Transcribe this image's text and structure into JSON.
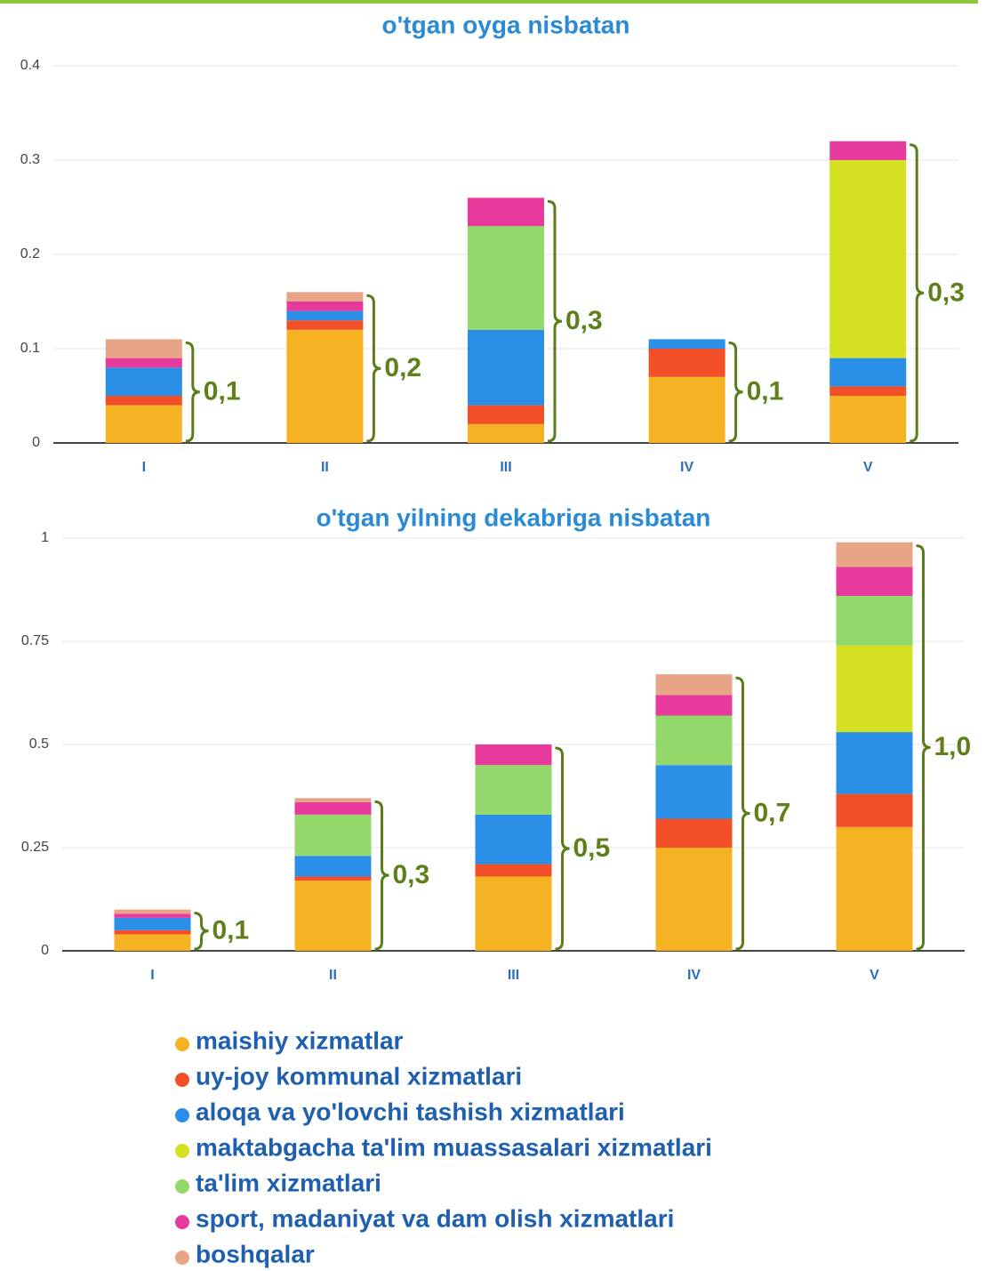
{
  "chart_data": [
    {
      "type": "stacked_bar",
      "title": "o'tgan oyga nisbatan",
      "categories": [
        "I",
        "II",
        "III",
        "IV",
        "V"
      ],
      "ylim": [
        0,
        0.4
      ],
      "yticks": [
        0,
        0.1,
        0.2,
        0.3,
        0.4
      ],
      "grid": true,
      "series": [
        {
          "name": "maishiy xizmatlar",
          "color": "#f5b324",
          "values": [
            0.04,
            0.12,
            0.02,
            0.07,
            0.05
          ]
        },
        {
          "name": "uy-joy kommunal xizmatlari",
          "color": "#f24e28",
          "values": [
            0.01,
            0.01,
            0.02,
            0.03,
            0.01
          ]
        },
        {
          "name": "aloqa va yo'lovchi tashish xizmatlari",
          "color": "#2b8fe8",
          "values": [
            0.03,
            0.01,
            0.08,
            0.01,
            0.03
          ]
        },
        {
          "name": "maktabgacha ta'lim muassasalari xizmatlari",
          "color": "#d4e021",
          "values": [
            null,
            null,
            null,
            null,
            0.21
          ]
        },
        {
          "name": "ta'lim xizmatlari",
          "color": "#92d86a",
          "values": [
            null,
            null,
            0.11,
            null,
            null
          ]
        },
        {
          "name": "sport, madaniyat va dam olish xizmatlari",
          "color": "#e63a9c",
          "values": [
            0.01,
            0.01,
            0.03,
            null,
            0.02
          ]
        },
        {
          "name": "boshqalar",
          "color": "#e8a585",
          "values": [
            0.02,
            0.01,
            null,
            null,
            null
          ]
        }
      ],
      "bracket_labels": [
        "0,1",
        "0,2",
        "0,3",
        "0,1",
        "0,3"
      ]
    },
    {
      "type": "stacked_bar",
      "title": "o'tgan yilning dekabriga nisbatan",
      "categories": [
        "I",
        "II",
        "III",
        "IV",
        "V"
      ],
      "ylim": [
        0,
        1
      ],
      "yticks": [
        0,
        0.25,
        0.5,
        0.75,
        1
      ],
      "grid": true,
      "series": [
        {
          "name": "maishiy xizmatlar",
          "color": "#f5b324",
          "values": [
            0.04,
            0.17,
            0.18,
            0.25,
            0.3
          ]
        },
        {
          "name": "uy-joy kommunal xizmatlari",
          "color": "#f24e28",
          "values": [
            0.01,
            0.01,
            0.03,
            0.07,
            0.08
          ]
        },
        {
          "name": "aloqa va yo'lovchi tashish xizmatlari",
          "color": "#2b8fe8",
          "values": [
            0.03,
            0.05,
            0.12,
            0.13,
            0.15
          ]
        },
        {
          "name": "maktabgacha ta'lim muassasalari xizmatlari",
          "color": "#d4e021",
          "values": [
            null,
            null,
            null,
            null,
            0.21
          ]
        },
        {
          "name": "ta'lim xizmatlari",
          "color": "#92d86a",
          "values": [
            null,
            0.1,
            0.12,
            0.12,
            0.12
          ]
        },
        {
          "name": "sport, madaniyat va dam olish xizmatlari",
          "color": "#e63a9c",
          "values": [
            0.01,
            0.03,
            0.05,
            0.05,
            0.07
          ]
        },
        {
          "name": "boshqalar",
          "color": "#e8a585",
          "values": [
            0.01,
            0.01,
            null,
            0.05,
            0.06
          ]
        }
      ],
      "bracket_labels": [
        "0,1",
        "0,3",
        "0,5",
        "0,7",
        "1,0"
      ]
    }
  ]
}
